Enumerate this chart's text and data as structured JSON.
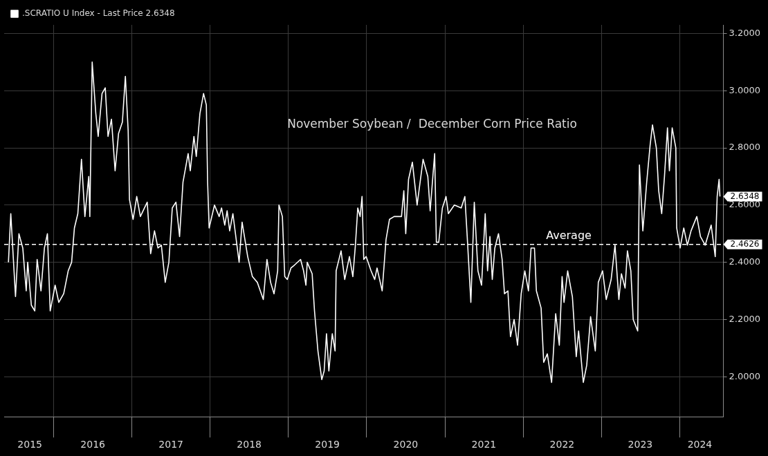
{
  "chart_data": {
    "type": "line",
    "title": "November Soybean /  December Corn Price Ratio",
    "x": [
      "2015-06-04",
      "2015-06-15",
      "2015-07-07",
      "2015-07-23",
      "2015-08-10",
      "2015-08-26",
      "2015-09-02",
      "2015-09-19",
      "2015-10-05",
      "2015-10-16",
      "2015-11-03",
      "2015-11-19",
      "2015-12-03",
      "2015-12-16",
      "2016-01-08",
      "2016-01-25",
      "2016-02-17",
      "2016-03-09",
      "2016-03-25",
      "2016-04-07",
      "2016-04-23",
      "2016-05-10",
      "2016-05-26",
      "2016-06-13",
      "2016-06-18",
      "2016-06-29",
      "2016-07-16",
      "2016-07-27",
      "2016-08-14",
      "2016-08-29",
      "2016-09-11",
      "2016-09-27",
      "2016-10-14",
      "2016-10-30",
      "2016-11-17",
      "2016-12-01",
      "2016-12-14",
      "2016-12-20",
      "2017-01-06",
      "2017-01-23",
      "2017-02-09",
      "2017-03-13",
      "2017-03-29",
      "2017-04-16",
      "2017-05-02",
      "2017-05-18",
      "2017-06-05",
      "2017-06-22",
      "2017-07-08",
      "2017-07-25",
      "2017-08-11",
      "2017-08-27",
      "2017-09-20",
      "2017-09-30",
      "2017-10-17",
      "2017-10-28",
      "2017-11-14",
      "2017-12-01",
      "2017-12-14",
      "2017-12-20",
      "2017-12-27",
      "2018-01-21",
      "2018-02-12",
      "2018-02-23",
      "2018-03-10",
      "2018-03-21",
      "2018-04-02",
      "2018-04-17",
      "2018-05-16",
      "2018-05-30",
      "2018-06-25",
      "2018-07-17",
      "2018-08-09",
      "2018-09-06",
      "2018-09-23",
      "2018-10-10",
      "2018-10-26",
      "2018-11-12",
      "2018-11-18",
      "2018-12-04",
      "2018-12-15",
      "2018-12-27",
      "2019-01-13",
      "2019-01-29",
      "2019-02-27",
      "2019-03-13",
      "2019-03-24",
      "2019-03-30",
      "2019-04-22",
      "2019-05-03",
      "2019-05-19",
      "2019-06-06",
      "2019-06-17",
      "2019-06-28",
      "2019-07-09",
      "2019-07-25",
      "2019-08-07",
      "2019-08-12",
      "2019-09-04",
      "2019-09-21",
      "2019-10-13",
      "2019-10-29",
      "2019-11-10",
      "2019-11-21",
      "2019-12-02",
      "2019-12-11",
      "2019-12-19",
      "2019-12-30",
      "2020-01-22",
      "2020-02-08",
      "2020-02-19",
      "2020-03-14",
      "2020-04-01",
      "2020-04-17",
      "2020-05-09",
      "2020-06-12",
      "2020-06-23",
      "2020-07-02",
      "2020-07-15",
      "2020-08-02",
      "2020-08-24",
      "2020-09-21",
      "2020-10-13",
      "2020-10-24",
      "2020-11-14",
      "2020-11-22",
      "2020-12-03",
      "2020-12-20",
      "2021-01-06",
      "2021-01-17",
      "2021-02-14",
      "2021-03-18",
      "2021-04-04",
      "2021-04-15",
      "2021-05-02",
      "2021-05-18",
      "2021-06-04",
      "2021-06-21",
      "2021-07-08",
      "2021-07-19",
      "2021-07-30",
      "2021-08-10",
      "2021-08-22",
      "2021-09-08",
      "2021-09-25",
      "2021-10-06",
      "2021-10-22",
      "2021-11-03",
      "2021-11-20",
      "2021-12-06",
      "2021-12-23",
      "2022-01-09",
      "2022-01-26",
      "2022-02-07",
      "2022-02-23",
      "2022-03-04",
      "2022-03-26",
      "2022-04-07",
      "2022-04-24",
      "2022-05-14",
      "2022-06-02",
      "2022-06-19",
      "2022-07-02",
      "2022-07-11",
      "2022-07-28",
      "2022-08-19",
      "2022-09-06",
      "2022-09-17",
      "2022-10-09",
      "2022-10-25",
      "2022-11-12",
      "2022-12-04",
      "2022-12-18",
      "2023-01-07",
      "2023-01-24",
      "2023-02-16",
      "2023-03-06",
      "2023-03-24",
      "2023-04-05",
      "2023-04-22",
      "2023-05-03",
      "2023-05-19",
      "2023-05-30",
      "2023-06-20",
      "2023-06-28",
      "2023-07-14",
      "2023-08-01",
      "2023-08-17",
      "2023-08-28",
      "2023-09-15",
      "2023-09-26",
      "2023-10-10",
      "2023-10-23",
      "2023-11-06",
      "2023-11-15",
      "2023-11-28",
      "2023-12-15",
      "2023-12-19",
      "2024-01-04",
      "2024-01-21",
      "2024-02-07",
      "2024-02-24",
      "2024-03-22",
      "2024-04-08",
      "2024-04-30",
      "2024-05-28",
      "2024-06-16",
      "2024-06-25",
      "2024-07-04",
      "2024-07-08"
    ],
    "series": [
      {
        "name": ".SCRATIO U Index - Last Price 2.6348",
        "color": "#ffffff",
        "values": [
          2.4,
          2.57,
          2.28,
          2.5,
          2.45,
          2.3,
          2.4,
          2.25,
          2.23,
          2.41,
          2.3,
          2.45,
          2.5,
          2.23,
          2.32,
          2.26,
          2.29,
          2.37,
          2.4,
          2.52,
          2.57,
          2.76,
          2.56,
          2.7,
          2.56,
          3.1,
          2.92,
          2.84,
          2.99,
          3.01,
          2.84,
          2.9,
          2.72,
          2.85,
          2.89,
          3.05,
          2.86,
          2.62,
          2.55,
          2.63,
          2.56,
          2.61,
          2.43,
          2.51,
          2.45,
          2.46,
          2.33,
          2.4,
          2.59,
          2.61,
          2.49,
          2.68,
          2.78,
          2.72,
          2.84,
          2.77,
          2.92,
          2.99,
          2.95,
          2.68,
          2.52,
          2.6,
          2.56,
          2.59,
          2.53,
          2.58,
          2.51,
          2.57,
          2.4,
          2.54,
          2.42,
          2.35,
          2.33,
          2.27,
          2.41,
          2.33,
          2.29,
          2.37,
          2.6,
          2.56,
          2.35,
          2.34,
          2.38,
          2.39,
          2.41,
          2.37,
          2.32,
          2.4,
          2.36,
          2.23,
          2.09,
          1.99,
          2.02,
          2.15,
          2.02,
          2.15,
          2.09,
          2.37,
          2.44,
          2.34,
          2.42,
          2.35,
          2.46,
          2.59,
          2.56,
          2.63,
          2.41,
          2.42,
          2.37,
          2.34,
          2.38,
          2.3,
          2.48,
          2.55,
          2.56,
          2.56,
          2.65,
          2.5,
          2.69,
          2.75,
          2.6,
          2.76,
          2.7,
          2.58,
          2.78,
          2.47,
          2.47,
          2.59,
          2.63,
          2.57,
          2.6,
          2.59,
          2.63,
          2.49,
          2.26,
          2.61,
          2.37,
          2.32,
          2.57,
          2.37,
          2.49,
          2.34,
          2.45,
          2.5,
          2.41,
          2.29,
          2.3,
          2.14,
          2.2,
          2.11,
          2.29,
          2.37,
          2.3,
          2.45,
          2.45,
          2.3,
          2.24,
          2.05,
          2.08,
          1.98,
          2.22,
          2.11,
          2.35,
          2.26,
          2.37,
          2.28,
          2.07,
          2.16,
          1.98,
          2.04,
          2.21,
          2.09,
          2.33,
          2.37,
          2.27,
          2.34,
          2.46,
          2.27,
          2.36,
          2.31,
          2.44,
          2.37,
          2.2,
          2.16,
          2.74,
          2.51,
          2.68,
          2.81,
          2.88,
          2.8,
          2.65,
          2.57,
          2.7,
          2.87,
          2.72,
          2.87,
          2.8,
          2.52,
          2.45,
          2.52,
          2.46,
          2.51,
          2.56,
          2.49,
          2.46,
          2.53,
          2.42,
          2.63,
          2.69,
          2.63
        ]
      }
    ],
    "xlim": [
      "2015-05-15",
      "2024-07-24"
    ],
    "xticks": [
      {
        "value": "2015-09-12",
        "label": "2015"
      },
      {
        "value": "2016-01-01",
        "label": null
      },
      {
        "value": "2016-07-02",
        "label": "2016"
      },
      {
        "value": "2017-01-01",
        "label": null
      },
      {
        "value": "2017-07-02",
        "label": "2017"
      },
      {
        "value": "2018-01-01",
        "label": null
      },
      {
        "value": "2018-07-02",
        "label": "2018"
      },
      {
        "value": "2019-01-01",
        "label": null
      },
      {
        "value": "2019-07-02",
        "label": "2019"
      },
      {
        "value": "2020-01-01",
        "label": null
      },
      {
        "value": "2020-07-02",
        "label": "2020"
      },
      {
        "value": "2021-01-01",
        "label": null
      },
      {
        "value": "2021-07-02",
        "label": "2021"
      },
      {
        "value": "2022-01-01",
        "label": null
      },
      {
        "value": "2022-07-02",
        "label": "2022"
      },
      {
        "value": "2023-01-01",
        "label": null
      },
      {
        "value": "2023-07-02",
        "label": "2023"
      },
      {
        "value": "2024-01-01",
        "label": null
      },
      {
        "value": "2024-04-05",
        "label": "2024"
      }
    ],
    "ylim": [
      1.86,
      3.23
    ],
    "yticks": [
      {
        "value": 2.0,
        "label": "2.0000"
      },
      {
        "value": 2.2,
        "label": "2.2000"
      },
      {
        "value": 2.4,
        "label": "2.4000"
      },
      {
        "value": 2.6,
        "label": "2.6000"
      },
      {
        "value": 2.8,
        "label": "2.8000"
      },
      {
        "value": 3.0,
        "label": "3.0000"
      },
      {
        "value": 3.2,
        "label": "3.2000"
      }
    ],
    "ref_lines": [
      {
        "axis": "y",
        "value": 2.4626,
        "label": "Average",
        "color": "#ffffff",
        "line_style": "dashed"
      }
    ],
    "annotations": [
      "2.6348",
      "2.4626"
    ],
    "grid": true,
    "legend": "top left",
    "marker": "none",
    "line_style": "solid"
  }
}
